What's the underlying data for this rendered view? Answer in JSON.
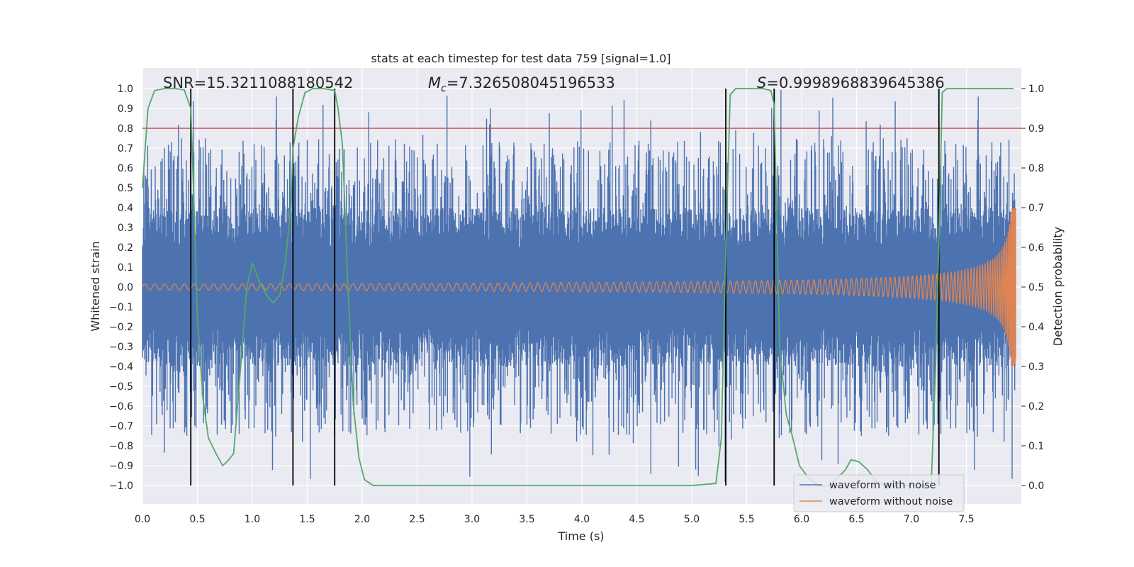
{
  "chart_data": {
    "type": "line",
    "title": "stats at each timestep for test data 759 [signal=1.0]",
    "xlabel": "Time (s)",
    "ylabel": "Whitened strain",
    "ylabel_right": "Detection probability",
    "xlim": [
      0.0,
      8.0
    ],
    "ylim": [
      -1.1,
      1.1
    ],
    "ylim_right": [
      0.0,
      1.0
    ],
    "x_ticks": [
      "0.0",
      "0.5",
      "1.0",
      "1.5",
      "2.0",
      "2.5",
      "3.0",
      "3.5",
      "4.0",
      "4.5",
      "5.0",
      "5.5",
      "6.0",
      "6.5",
      "7.0",
      "7.5"
    ],
    "y_ticks": [
      "1.0",
      "0.9",
      "0.8",
      "0.7",
      "0.6",
      "0.5",
      "0.4",
      "0.3",
      "0.2",
      "0.1",
      "0.0",
      "−0.1",
      "−0.2",
      "−0.3",
      "−0.4",
      "−0.5",
      "−0.6",
      "−0.7",
      "−0.8",
      "−0.9",
      "−1.0"
    ],
    "y_ticks_right": [
      "1.0",
      "0.9",
      "0.8",
      "0.7",
      "0.6",
      "0.5",
      "0.4",
      "0.3",
      "0.2",
      "0.1",
      "0.0"
    ],
    "grid": true,
    "legend_position": "bottom-right",
    "annotations": {
      "snr": "SNR=15.3211088180542",
      "mc": "=7.326508045196533",
      "mc_symbol": "M",
      "mc_subscript": "c",
      "s": "=0.9998968839645386",
      "s_symbol": "S"
    },
    "threshold": {
      "value": 0.8,
      "color": "#c44e52"
    },
    "vertical_lines": [
      0.44,
      1.37,
      1.75,
      5.31,
      5.75,
      7.25
    ],
    "series": [
      {
        "name": "waveform with noise",
        "color": "#4c72b0",
        "note_range": "approx band ±0.4 with spikes to ±1.0",
        "band_core": 0.2,
        "band_typical": 0.4,
        "spike_max": 1.0
      },
      {
        "name": "waveform without noise",
        "color": "#dd8452",
        "start_amplitude": 0.015,
        "end_amplitude": 0.4
      },
      {
        "color": "#55a868",
        "axis": "right",
        "x": [
          0.0,
          0.05,
          0.11,
          0.2,
          0.3,
          0.38,
          0.44,
          0.47,
          0.5,
          0.55,
          0.6,
          0.67,
          0.73,
          0.77,
          0.83,
          0.9,
          0.95,
          1.0,
          1.07,
          1.13,
          1.19,
          1.25,
          1.3,
          1.35,
          1.37,
          1.42,
          1.48,
          1.55,
          1.65,
          1.75,
          1.78,
          1.82,
          1.87,
          1.92,
          1.97,
          2.02,
          2.1,
          3.0,
          4.0,
          5.0,
          5.22,
          5.27,
          5.31,
          5.35,
          5.4,
          5.45,
          5.55,
          5.65,
          5.72,
          5.75,
          5.8,
          5.86,
          5.92,
          5.98,
          6.06,
          6.15,
          6.25,
          6.33,
          6.4,
          6.45,
          6.52,
          6.6,
          6.68,
          6.76,
          6.84,
          6.92,
          7.0,
          7.1,
          7.18,
          7.22,
          7.25,
          7.28,
          7.32,
          7.4,
          7.5,
          7.93
        ],
        "y": [
          0.75,
          0.95,
          0.995,
          1.0,
          1.0,
          0.997,
          0.95,
          0.7,
          0.42,
          0.22,
          0.12,
          0.08,
          0.05,
          0.06,
          0.08,
          0.32,
          0.5,
          0.56,
          0.51,
          0.48,
          0.46,
          0.48,
          0.56,
          0.7,
          0.85,
          0.93,
          0.99,
          1.0,
          1.0,
          0.995,
          0.95,
          0.86,
          0.5,
          0.2,
          0.07,
          0.015,
          0.0,
          0.0,
          0.0,
          0.0,
          0.005,
          0.12,
          0.6,
          0.985,
          1.0,
          1.0,
          1.0,
          1.0,
          0.995,
          0.96,
          0.35,
          0.18,
          0.12,
          0.05,
          0.02,
          0.0,
          0.0,
          0.02,
          0.04,
          0.065,
          0.06,
          0.04,
          0.01,
          0.0,
          0.0,
          0.0,
          0.0,
          0.0,
          0.0,
          0.3,
          0.62,
          0.99,
          1.0,
          1.0,
          1.0,
          1.0
        ]
      }
    ]
  }
}
